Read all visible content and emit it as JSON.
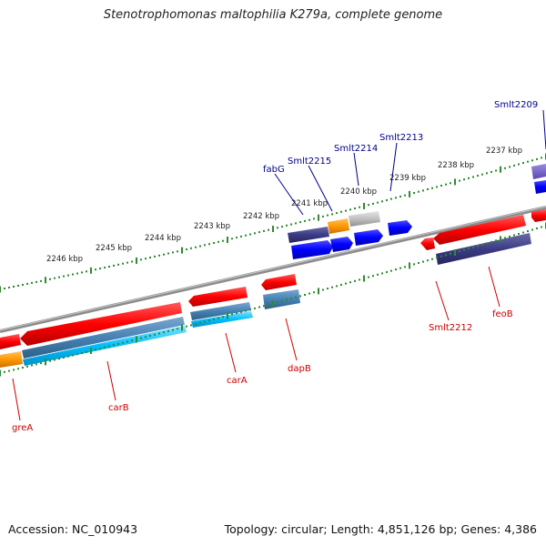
{
  "title": "Stenotrophomonas maltophilia K279a, complete genome",
  "footer": {
    "accession": "Accession: NC_010943",
    "topology": "Topology: circular; Length: 4,851,126 bp; Genes: 4,386"
  },
  "colors": {
    "backbone": "#8c8c8c",
    "ticks": "#2e8b2e",
    "forward_label": "#00008b",
    "reverse_label": "#cc0000"
  },
  "tick_labels": [
    "2237 kbp",
    "2238 kbp",
    "2239 kbp",
    "2240 kbp",
    "2241 kbp",
    "2242 kbp",
    "2243 kbp",
    "2244 kbp",
    "2245 kbp",
    "2246 kbp"
  ],
  "gene_labels": {
    "forward": [
      "Smlt2209",
      "Smlt2213",
      "Smlt2214",
      "Smlt2215",
      "fabG"
    ],
    "reverse": [
      "feoB",
      "Smlt2212",
      "dapB",
      "carA",
      "carB",
      "greA"
    ]
  }
}
